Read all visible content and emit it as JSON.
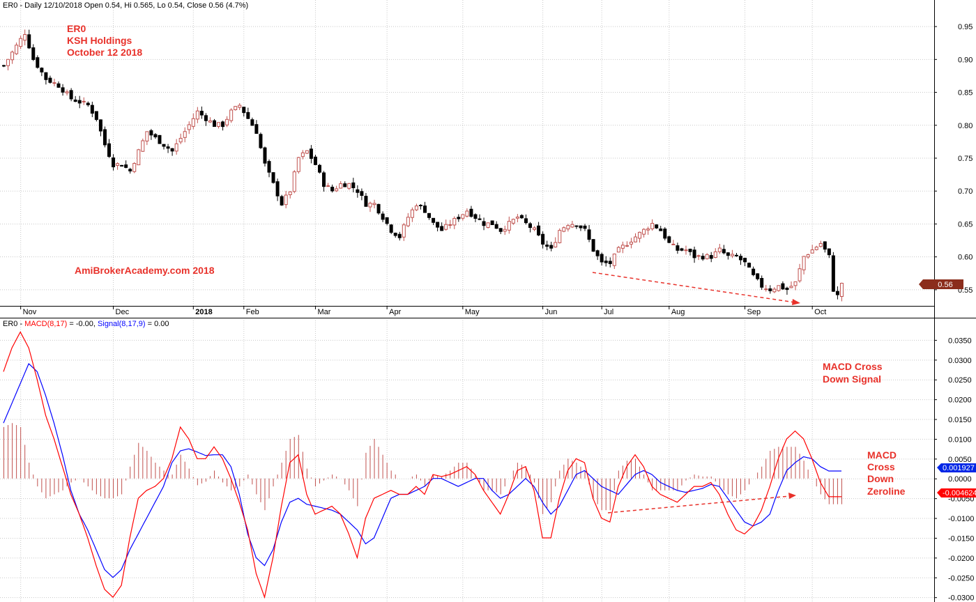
{
  "colors": {
    "up": "#c0504d",
    "down": "#000000",
    "macd": "#ff0000",
    "signal": "#0000ff",
    "histogram": "#c0504d",
    "annotation": "#e8312a",
    "grid": "#c8c8c8"
  },
  "price_pane": {
    "header": "ER0 - Daily 12/10/2018 Open 0.54, Hi 0.565, Lo 0.54, Close 0.56 (4.7%)",
    "annotation_lines": [
      "ER0",
      "KSH Holdings",
      "October 12 2018"
    ],
    "watermark": "AmiBrokerAcademy.com  2018",
    "last_price_label": "0.56"
  },
  "macd_pane": {
    "header_prefix": "ER0 - ",
    "macd_label": "MACD(8,17)",
    "macd_value": " = -0.00, ",
    "signal_label": "Signal(8,17,9)",
    "signal_value": " = 0.00",
    "annotation_cross_down_signal": [
      "MACD Cross",
      "Down Signal"
    ],
    "annotation_cross_down_zeroline": [
      "MACD",
      "Cross",
      "Down",
      "Zeroline"
    ],
    "signal_badge": "0.001927",
    "macd_badge": "-0.004624"
  },
  "chart_data": [
    {
      "type": "candlestick",
      "series": [
        {
          "name": "ER0"
        }
      ],
      "x_ticks": [
        "Nov",
        "Dec",
        "2018",
        "Feb",
        "Mar",
        "Apr",
        "May",
        "Jun",
        "Jul",
        "Aug",
        "Sep",
        "Oct"
      ],
      "y_ticks": [
        "0.95",
        "0.90",
        "0.85",
        "0.80",
        "0.75",
        "0.70",
        "0.65",
        "0.60",
        "0.55"
      ],
      "ylim": [
        0.525,
        0.975
      ],
      "grid": true,
      "close_path": [
        [
          0,
          0.89
        ],
        [
          3,
          0.92
        ],
        [
          5,
          0.94
        ],
        [
          7,
          0.9
        ],
        [
          10,
          0.87
        ],
        [
          13,
          0.86
        ],
        [
          16,
          0.84
        ],
        [
          20,
          0.83
        ],
        [
          22,
          0.81
        ],
        [
          24,
          0.77
        ],
        [
          26,
          0.74
        ],
        [
          28,
          0.74
        ],
        [
          30,
          0.73
        ],
        [
          32,
          0.76
        ],
        [
          34,
          0.79
        ],
        [
          36,
          0.78
        ],
        [
          38,
          0.77
        ],
        [
          40,
          0.76
        ],
        [
          42,
          0.78
        ],
        [
          44,
          0.8
        ],
        [
          46,
          0.82
        ],
        [
          48,
          0.81
        ],
        [
          50,
          0.8
        ],
        [
          52,
          0.8
        ],
        [
          54,
          0.82
        ],
        [
          56,
          0.83
        ],
        [
          58,
          0.81
        ],
        [
          60,
          0.79
        ],
        [
          62,
          0.74
        ],
        [
          64,
          0.71
        ],
        [
          66,
          0.68
        ],
        [
          68,
          0.7
        ],
        [
          70,
          0.75
        ],
        [
          72,
          0.76
        ],
        [
          74,
          0.74
        ],
        [
          76,
          0.71
        ],
        [
          78,
          0.7
        ],
        [
          80,
          0.71
        ],
        [
          82,
          0.71
        ],
        [
          84,
          0.7
        ],
        [
          86,
          0.68
        ],
        [
          88,
          0.68
        ],
        [
          90,
          0.66
        ],
        [
          92,
          0.64
        ],
        [
          94,
          0.63
        ],
        [
          96,
          0.66
        ],
        [
          98,
          0.68
        ],
        [
          100,
          0.67
        ],
        [
          102,
          0.65
        ],
        [
          104,
          0.64
        ],
        [
          106,
          0.65
        ],
        [
          108,
          0.66
        ],
        [
          110,
          0.67
        ],
        [
          112,
          0.66
        ],
        [
          114,
          0.65
        ],
        [
          116,
          0.65
        ],
        [
          118,
          0.64
        ],
        [
          120,
          0.65
        ],
        [
          122,
          0.66
        ],
        [
          124,
          0.65
        ],
        [
          126,
          0.64
        ],
        [
          128,
          0.62
        ],
        [
          130,
          0.61
        ],
        [
          132,
          0.64
        ],
        [
          134,
          0.65
        ],
        [
          136,
          0.65
        ],
        [
          138,
          0.64
        ],
        [
          140,
          0.61
        ],
        [
          142,
          0.59
        ],
        [
          144,
          0.59
        ],
        [
          146,
          0.61
        ],
        [
          148,
          0.62
        ],
        [
          150,
          0.63
        ],
        [
          152,
          0.64
        ],
        [
          154,
          0.65
        ],
        [
          156,
          0.64
        ],
        [
          158,
          0.62
        ],
        [
          160,
          0.61
        ],
        [
          162,
          0.61
        ],
        [
          164,
          0.6
        ],
        [
          166,
          0.6
        ],
        [
          168,
          0.6
        ],
        [
          170,
          0.61
        ],
        [
          172,
          0.6
        ],
        [
          174,
          0.6
        ],
        [
          176,
          0.59
        ],
        [
          178,
          0.57
        ],
        [
          180,
          0.555
        ],
        [
          182,
          0.55
        ],
        [
          184,
          0.555
        ],
        [
          186,
          0.55
        ],
        [
          188,
          0.56
        ],
        [
          190,
          0.6
        ],
        [
          192,
          0.61
        ],
        [
          194,
          0.62
        ],
        [
          196,
          0.6
        ],
        [
          197,
          0.55
        ],
        [
          198,
          0.54
        ],
        [
          199,
          0.56
        ]
      ]
    },
    {
      "type": "line",
      "series": [
        {
          "name": "MACD(8,17)"
        },
        {
          "name": "Signal(8,17,9)"
        }
      ],
      "y_ticks": [
        "0.0350",
        "0.0300",
        "0.0250",
        "0.0200",
        "0.0150",
        "0.0100",
        "0.0050",
        "0.0000",
        "-0.0050",
        "-0.0100",
        "-0.0150",
        "-0.0200",
        "-0.0250",
        "-0.0300"
      ],
      "ylim": [
        -0.0312,
        0.0378
      ],
      "grid": true,
      "macd": [
        [
          0,
          0.027
        ],
        [
          2,
          0.033
        ],
        [
          4,
          0.037
        ],
        [
          6,
          0.033
        ],
        [
          8,
          0.025
        ],
        [
          10,
          0.016
        ],
        [
          12,
          0.01
        ],
        [
          14,
          0.003
        ],
        [
          16,
          -0.004
        ],
        [
          18,
          -0.009
        ],
        [
          20,
          -0.015
        ],
        [
          22,
          -0.022
        ],
        [
          24,
          -0.028
        ],
        [
          26,
          -0.03
        ],
        [
          28,
          -0.027
        ],
        [
          30,
          -0.015
        ],
        [
          32,
          -0.005
        ],
        [
          34,
          -0.003
        ],
        [
          36,
          -0.002
        ],
        [
          38,
          0.0
        ],
        [
          40,
          0.005
        ],
        [
          42,
          0.013
        ],
        [
          44,
          0.01
        ],
        [
          46,
          0.005
        ],
        [
          48,
          0.005
        ],
        [
          50,
          0.008
        ],
        [
          52,
          0.005
        ],
        [
          54,
          0.0
        ],
        [
          56,
          -0.006
        ],
        [
          58,
          -0.013
        ],
        [
          60,
          -0.024
        ],
        [
          62,
          -0.03
        ],
        [
          64,
          -0.02
        ],
        [
          66,
          -0.007
        ],
        [
          68,
          0.004
        ],
        [
          70,
          0.006
        ],
        [
          72,
          -0.004
        ],
        [
          74,
          -0.009
        ],
        [
          76,
          -0.008
        ],
        [
          78,
          -0.007
        ],
        [
          80,
          -0.009
        ],
        [
          82,
          -0.014
        ],
        [
          84,
          -0.02
        ],
        [
          86,
          -0.01
        ],
        [
          88,
          -0.005
        ],
        [
          90,
          -0.004
        ],
        [
          92,
          -0.003
        ],
        [
          94,
          -0.004
        ],
        [
          96,
          -0.004
        ],
        [
          98,
          -0.002
        ],
        [
          100,
          -0.004
        ],
        [
          102,
          0.001
        ],
        [
          104,
          0.0005
        ],
        [
          106,
          0.001
        ],
        [
          108,
          0.002
        ],
        [
          110,
          0.003
        ],
        [
          112,
          0.001
        ],
        [
          114,
          -0.003
        ],
        [
          116,
          -0.006
        ],
        [
          118,
          -0.009
        ],
        [
          120,
          -0.004
        ],
        [
          122,
          0.002
        ],
        [
          124,
          0.003
        ],
        [
          126,
          -0.003
        ],
        [
          128,
          -0.015
        ],
        [
          130,
          -0.015
        ],
        [
          132,
          -0.005
        ],
        [
          134,
          0.002
        ],
        [
          136,
          0.005
        ],
        [
          138,
          0.004
        ],
        [
          140,
          -0.005
        ],
        [
          142,
          -0.01
        ],
        [
          144,
          -0.011
        ],
        [
          146,
          -0.002
        ],
        [
          148,
          0.003
        ],
        [
          150,
          0.006
        ],
        [
          152,
          0.003
        ],
        [
          154,
          -0.002
        ],
        [
          156,
          -0.004
        ],
        [
          158,
          -0.005
        ],
        [
          160,
          -0.006
        ],
        [
          162,
          -0.004
        ],
        [
          164,
          -0.002
        ],
        [
          166,
          -0.002
        ],
        [
          168,
          -0.001
        ],
        [
          170,
          -0.004
        ],
        [
          172,
          -0.009
        ],
        [
          174,
          -0.013
        ],
        [
          176,
          -0.014
        ],
        [
          178,
          -0.012
        ],
        [
          180,
          -0.008
        ],
        [
          182,
          -0.002
        ],
        [
          184,
          0.005
        ],
        [
          186,
          0.01
        ],
        [
          188,
          0.012
        ],
        [
          190,
          0.01
        ],
        [
          192,
          0.005
        ],
        [
          194,
          -0.001
        ],
        [
          196,
          -0.0046
        ]
      ],
      "signal": [
        [
          0,
          0.014
        ],
        [
          4,
          0.024
        ],
        [
          6,
          0.029
        ],
        [
          8,
          0.027
        ],
        [
          10,
          0.021
        ],
        [
          12,
          0.014
        ],
        [
          14,
          0.006
        ],
        [
          16,
          -0.003
        ],
        [
          18,
          -0.009
        ],
        [
          20,
          -0.013
        ],
        [
          22,
          -0.018
        ],
        [
          24,
          -0.023
        ],
        [
          26,
          -0.025
        ],
        [
          28,
          -0.023
        ],
        [
          30,
          -0.018
        ],
        [
          32,
          -0.014
        ],
        [
          34,
          -0.01
        ],
        [
          36,
          -0.006
        ],
        [
          38,
          -0.002
        ],
        [
          40,
          0.004
        ],
        [
          42,
          0.007
        ],
        [
          44,
          0.0075
        ],
        [
          46,
          0.0067
        ],
        [
          48,
          0.0058
        ],
        [
          50,
          0.006
        ],
        [
          52,
          0.006
        ],
        [
          54,
          0.003
        ],
        [
          56,
          -0.004
        ],
        [
          58,
          -0.014
        ],
        [
          60,
          -0.02
        ],
        [
          62,
          -0.022
        ],
        [
          64,
          -0.018
        ],
        [
          66,
          -0.011
        ],
        [
          68,
          -0.006
        ],
        [
          70,
          -0.005
        ],
        [
          72,
          -0.0065
        ],
        [
          74,
          -0.007
        ],
        [
          76,
          -0.0075
        ],
        [
          78,
          -0.008
        ],
        [
          80,
          -0.009
        ],
        [
          82,
          -0.011
        ],
        [
          84,
          -0.013
        ],
        [
          86,
          -0.0165
        ],
        [
          88,
          -0.015
        ],
        [
          90,
          -0.01
        ],
        [
          92,
          -0.005
        ],
        [
          94,
          -0.004
        ],
        [
          96,
          -0.004
        ],
        [
          98,
          -0.003
        ],
        [
          100,
          -0.002
        ],
        [
          102,
          0.0
        ],
        [
          104,
          0.0
        ],
        [
          106,
          -0.001
        ],
        [
          108,
          -0.002
        ],
        [
          110,
          -0.001
        ],
        [
          112,
          0.0
        ],
        [
          114,
          0.0
        ],
        [
          116,
          -0.003
        ],
        [
          118,
          -0.005
        ],
        [
          120,
          -0.004
        ],
        [
          122,
          -0.002
        ],
        [
          124,
          0.0
        ],
        [
          126,
          -0.002
        ],
        [
          128,
          -0.006
        ],
        [
          130,
          -0.009
        ],
        [
          132,
          -0.007
        ],
        [
          134,
          -0.003
        ],
        [
          136,
          0.001
        ],
        [
          138,
          0.002
        ],
        [
          140,
          0.0
        ],
        [
          142,
          -0.002
        ],
        [
          144,
          -0.003
        ],
        [
          146,
          -0.004
        ],
        [
          148,
          -0.0015
        ],
        [
          150,
          0.001
        ],
        [
          152,
          0.002
        ],
        [
          154,
          0.001
        ],
        [
          156,
          -0.001
        ],
        [
          158,
          -0.002
        ],
        [
          160,
          -0.003
        ],
        [
          162,
          -0.0035
        ],
        [
          164,
          -0.003
        ],
        [
          166,
          -0.0025
        ],
        [
          168,
          -0.0015
        ],
        [
          170,
          -0.002
        ],
        [
          172,
          -0.005
        ],
        [
          174,
          -0.008
        ],
        [
          176,
          -0.011
        ],
        [
          178,
          -0.012
        ],
        [
          180,
          -0.011
        ],
        [
          182,
          -0.009
        ],
        [
          184,
          -0.003
        ],
        [
          186,
          0.002
        ],
        [
          188,
          0.004
        ],
        [
          190,
          0.0055
        ],
        [
          192,
          0.005
        ],
        [
          194,
          0.003
        ],
        [
          196,
          0.0019
        ]
      ]
    }
  ]
}
